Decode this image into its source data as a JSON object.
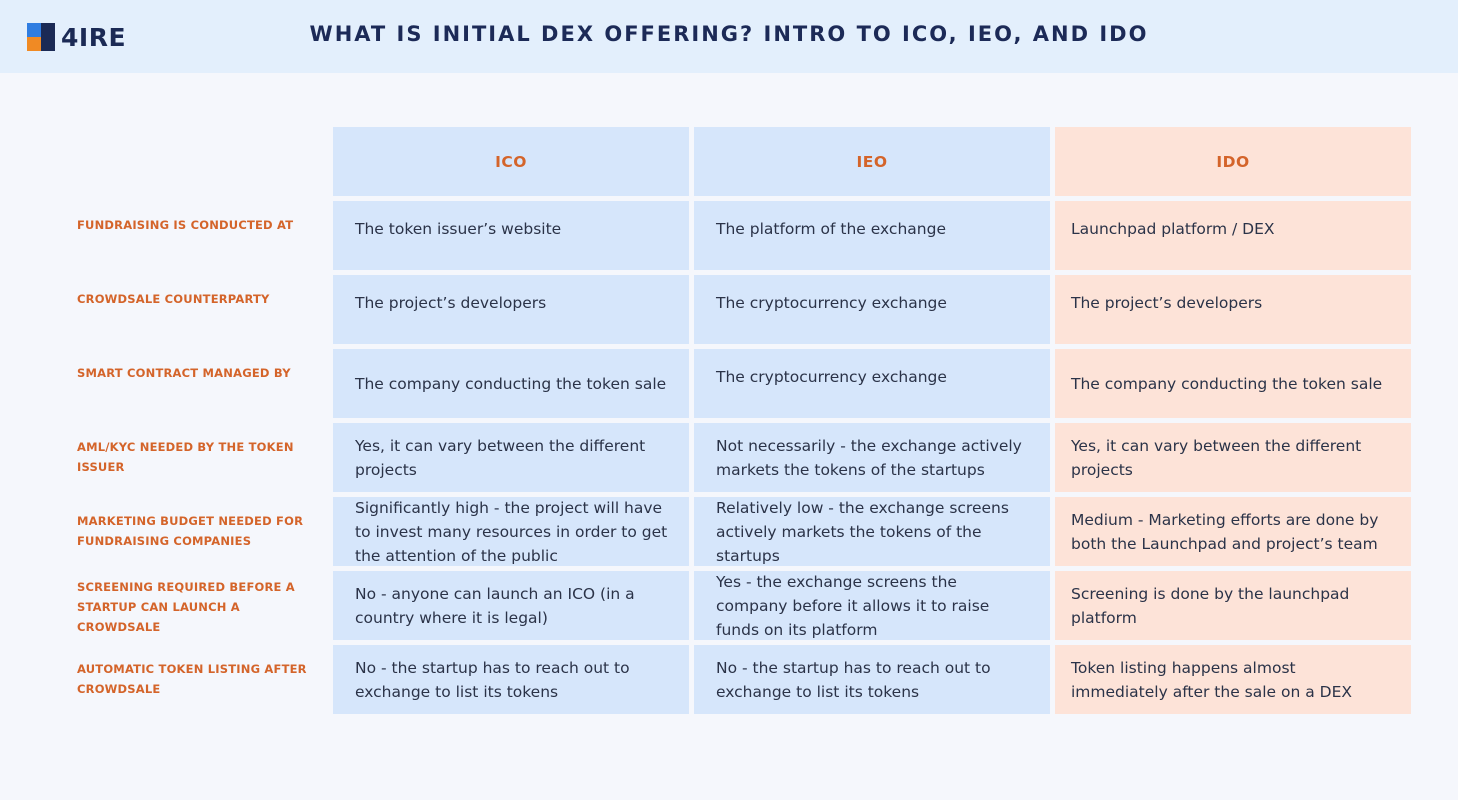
{
  "header": {
    "logo_text": "4IRE",
    "title": "WHAT IS INITIAL DEX OFFERING? INTRO TO ICO, IEO, AND IDO"
  },
  "colors": {
    "header_bg": "#e3effc",
    "blue_cell": "#d6e6fb",
    "peach_cell": "#fde3d8",
    "accent_orange": "#d4642a",
    "title_navy": "#1c2a57"
  },
  "table": {
    "columns": [
      "ICO",
      "IEO",
      "IDO"
    ],
    "rows": [
      {
        "label": "FUNDRAISING IS CONDUCTED AT",
        "values": [
          "The token issuer’s website",
          "The platform of the exchange",
          "Launchpad platform / DEX"
        ]
      },
      {
        "label": "CROWDSALE COUNTERPARTY",
        "values": [
          "The project’s developers",
          "The cryptocurrency exchange",
          "The project’s developers"
        ]
      },
      {
        "label": "SMART CONTRACT MANAGED BY",
        "values": [
          "The company conducting the token sale",
          "The  cryptocurrency exchange",
          "The company conducting the token sale"
        ]
      },
      {
        "label": "AML/KYC NEEDED BY THE TOKEN ISSUER",
        "values": [
          "Yes, it can vary between the different projects",
          "Not necessarily - the exchange actively markets the tokens of the startups",
          "Yes, it can vary between the different projects"
        ]
      },
      {
        "label": "MARKETING BUDGET NEEDED FOR FUNDRAISING COMPANIES",
        "values": [
          "Significantly high - the project will have to invest many resources in order to get the attention of the public",
          "Relatively low - the exchange screens actively markets the tokens of the startups",
          "Medium - Marketing efforts are done by both the Launchpad and project’s team"
        ]
      },
      {
        "label": "SCREENING REQUIRED BEFORE A STARTUP CAN LAUNCH A CROWDSALE",
        "values": [
          "No - anyone can launch an ICO (in a country where it is legal)",
          "Yes -  the exchange screens the company before it allows it to raise funds on its platform",
          "Screening is done by the launchpad platform"
        ]
      },
      {
        "label": "AUTOMATIC TOKEN LISTING AFTER CROWDSALE",
        "values": [
          "No - the startup has to reach out to exchange to list its tokens",
          "No - the startup has to reach out to exchange to list its tokens",
          "Token listing happens almost immediately after the sale on a DEX"
        ]
      }
    ]
  }
}
